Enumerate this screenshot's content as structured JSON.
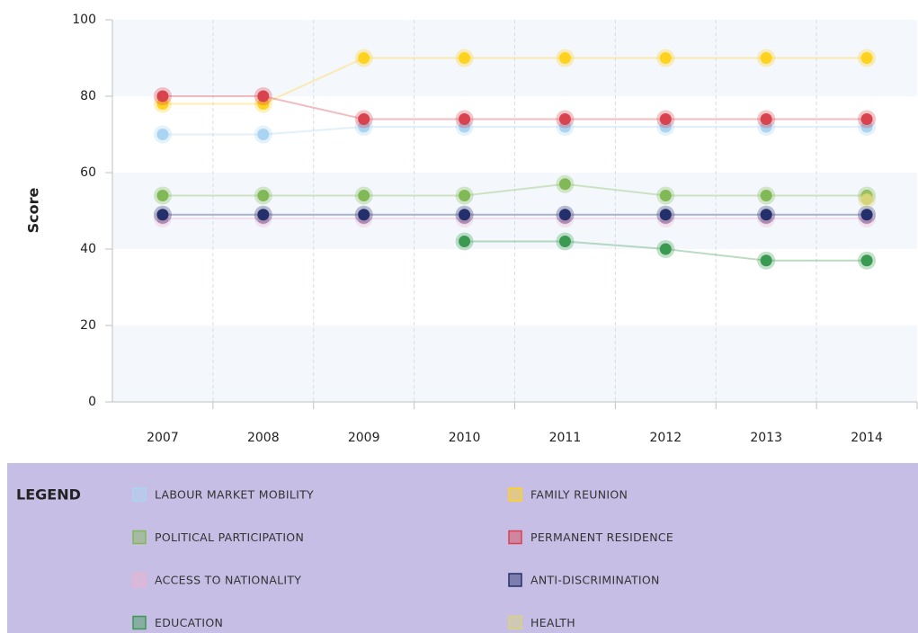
{
  "chart_data": {
    "type": "line",
    "ylabel": "Score",
    "categories": [
      "2007",
      "2008",
      "2009",
      "2010",
      "2011",
      "2012",
      "2013",
      "2014"
    ],
    "ylim": [
      0,
      100
    ],
    "yticks": [
      0,
      20,
      40,
      60,
      80,
      100
    ],
    "grid": true,
    "legend_title": "LEGEND",
    "legend_position": "bottom",
    "series": [
      {
        "name": "LABOUR MARKET MOBILITY",
        "color": "#a9d5f2",
        "values": [
          70,
          70,
          72,
          72,
          72,
          72,
          72,
          72
        ]
      },
      {
        "name": "FAMILY REUNION",
        "color": "#ffd21f",
        "values": [
          78,
          78,
          90,
          90,
          90,
          90,
          90,
          90
        ]
      },
      {
        "name": "POLITICAL PARTICIPATION",
        "color": "#80b955",
        "values": [
          54,
          54,
          54,
          54,
          57,
          54,
          54,
          54
        ]
      },
      {
        "name": "PERMANENT RESIDENCE",
        "color": "#d9434e",
        "values": [
          80,
          80,
          74,
          74,
          74,
          74,
          74,
          74
        ]
      },
      {
        "name": "ACCESS TO NATIONALITY",
        "color": "#e8b4cf",
        "values": [
          48,
          48,
          48,
          48,
          48,
          48,
          48,
          48
        ]
      },
      {
        "name": "ANTI-DISCRIMINATION",
        "color": "#24306b",
        "values": [
          49,
          49,
          49,
          49,
          49,
          49,
          49,
          49
        ]
      },
      {
        "name": "EDUCATION",
        "color": "#3b9a52",
        "values": [
          null,
          null,
          null,
          42,
          42,
          40,
          37,
          37
        ]
      },
      {
        "name": "HEALTH",
        "color": "#d8d47a",
        "values": [
          null,
          null,
          null,
          null,
          null,
          null,
          null,
          53
        ]
      }
    ]
  }
}
